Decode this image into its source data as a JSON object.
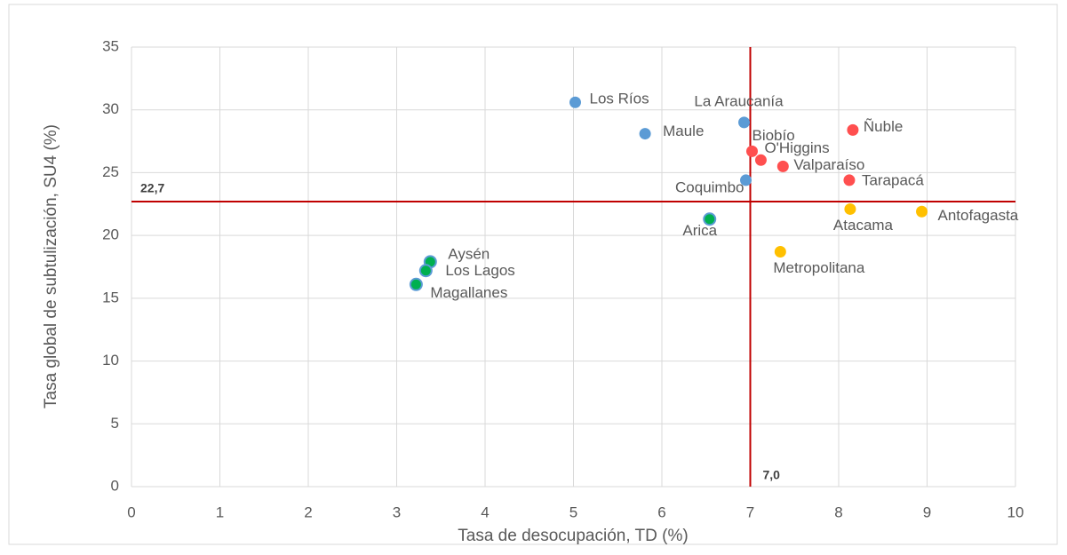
{
  "chart_data": {
    "type": "scatter",
    "xlabel": "Tasa de desocupación, TD (%)",
    "ylabel": "Tasa global de subtulización, SU4 (%)",
    "xlim": [
      0,
      10
    ],
    "xticks": [
      0,
      1,
      2,
      3,
      4,
      5,
      6,
      7,
      8,
      9,
      10
    ],
    "ylim": [
      0,
      35
    ],
    "yticks": [
      0,
      5,
      10,
      15,
      20,
      25,
      30,
      35
    ],
    "grid": true,
    "series": [
      {
        "color": "#5b9bd5",
        "x": [
          5.02,
          5.81,
          6.93,
          6.95
        ],
        "values": [
          30.6,
          28.1,
          29.0,
          24.4
        ],
        "labels": [
          "Los Ríos",
          "Maule",
          "La Araucanía",
          "Coquimbo"
        ]
      },
      {
        "color": "#ff4f4f",
        "x": [
          7.02,
          7.12,
          7.37,
          8.16,
          8.12
        ],
        "values": [
          26.7,
          26.0,
          25.5,
          28.4,
          24.4
        ],
        "labels": [
          "Biobío",
          "O'Higgins",
          "Valparaíso",
          "Ñuble",
          "Tarapacá"
        ]
      },
      {
        "color": "#ffc000",
        "x": [
          8.13,
          8.94,
          7.34
        ],
        "values": [
          22.1,
          21.9,
          18.7
        ],
        "labels": [
          "Atacama",
          "Antofagasta",
          "Metropolitana"
        ]
      },
      {
        "color": "#00b050",
        "edge": "#5b9bd5",
        "x": [
          6.54,
          3.38,
          3.33,
          3.22
        ],
        "values": [
          21.3,
          17.9,
          17.2,
          16.1
        ],
        "labels": [
          "Arica",
          "Aysén",
          "Los Lagos",
          "Magallanes"
        ]
      }
    ],
    "reference_lines": {
      "color": "#c00000",
      "x": {
        "value": 7.0,
        "label": "7,0"
      },
      "y": {
        "value": 22.7,
        "label": "22,7"
      }
    }
  }
}
